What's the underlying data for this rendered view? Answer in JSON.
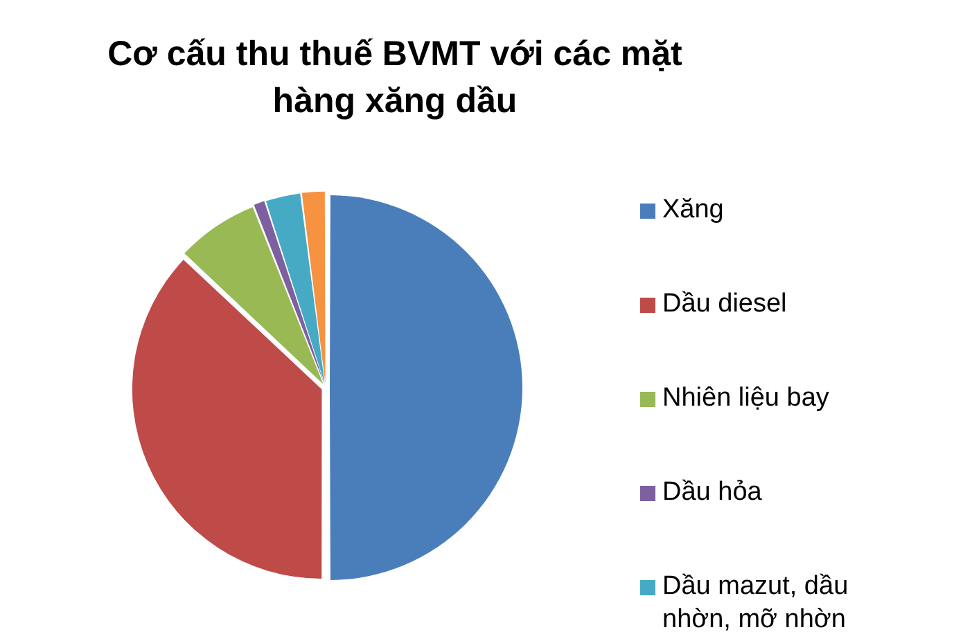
{
  "chart_data": {
    "type": "pie",
    "title": "Cơ cấu thu thuế BVMT với các mặt hàng xăng dầu",
    "categories": [
      "Xăng",
      "Dầu diesel",
      "Nhiên liệu bay",
      "Dầu hỏa",
      "Dầu mazut, dầu nhờn, mỡ nhờn",
      null
    ],
    "values": [
      50,
      37,
      7,
      1,
      3,
      2
    ],
    "colors": [
      "#4a7ebb",
      "#be4b48",
      "#98b954",
      "#7d60a0",
      "#46aac5",
      "#f69240"
    ],
    "legend": "right"
  }
}
